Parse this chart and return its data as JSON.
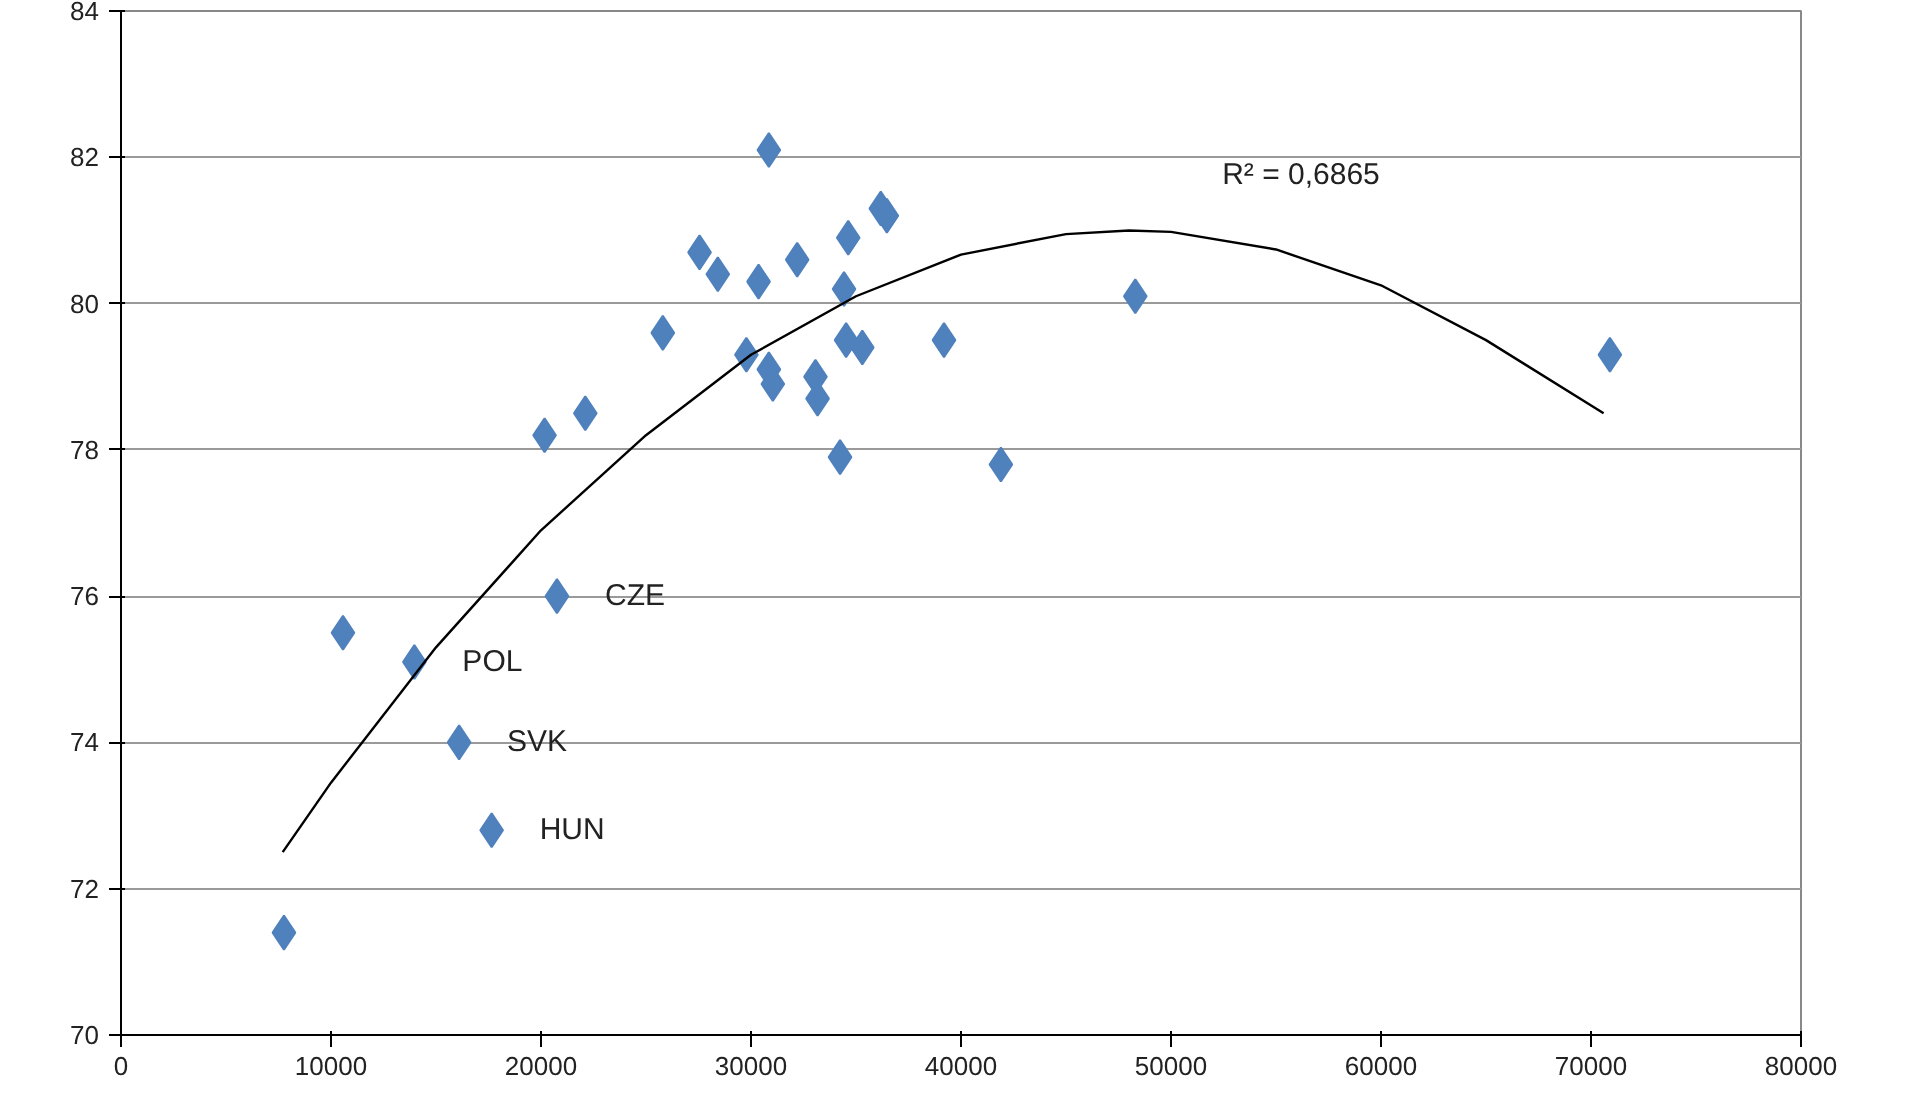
{
  "chart_data": {
    "type": "scatter",
    "xlim": [
      0,
      80000
    ],
    "ylim": [
      70,
      84
    ],
    "xticks": [
      0,
      10000,
      20000,
      30000,
      40000,
      50000,
      60000,
      70000,
      80000
    ],
    "yticks": [
      70,
      72,
      74,
      76,
      78,
      80,
      82,
      84
    ],
    "grid": "y",
    "marker": "diamond",
    "series": [
      {
        "color": "#4f81bd",
        "x": [
          7760,
          10570,
          13970,
          16100,
          17650,
          20760,
          20170,
          22110,
          25800,
          27550,
          28420,
          29780,
          30360,
          30850,
          30850,
          31040,
          32200,
          33070,
          33170,
          34240,
          34430,
          34630,
          34530,
          35300,
          36180,
          36470,
          39190,
          41900,
          48300,
          70900
        ],
        "values": [
          71.4,
          75.5,
          75.1,
          74.0,
          72.8,
          76.0,
          78.2,
          78.5,
          79.6,
          80.7,
          80.4,
          79.3,
          80.3,
          82.1,
          79.1,
          78.9,
          80.6,
          79.0,
          78.7,
          77.9,
          80.2,
          80.9,
          79.5,
          79.4,
          81.3,
          81.2,
          79.5,
          77.8,
          80.1,
          79.3
        ]
      },
      {
        "type": "line",
        "color": "#000000",
        "marker": "none",
        "x": [
          7700,
          10000,
          15000,
          20000,
          25000,
          30000,
          35000,
          40000,
          45000,
          48000,
          50000,
          55000,
          60000,
          65000,
          70600
        ],
        "values": [
          72.5,
          73.45,
          75.3,
          76.9,
          78.2,
          79.3,
          80.1,
          80.67,
          80.95,
          81.0,
          80.98,
          80.74,
          80.25,
          79.5,
          78.5
        ]
      }
    ],
    "annotations": [
      {
        "text": "CZE",
        "x": 20760,
        "y": 76.0
      },
      {
        "text": "POL",
        "x": 13970,
        "y": 75.1
      },
      {
        "text": "SVK",
        "x": 16100,
        "y": 74.0
      },
      {
        "text": "HUN",
        "x": 17650,
        "y": 72.8
      },
      "R² = 0,6865"
    ]
  }
}
